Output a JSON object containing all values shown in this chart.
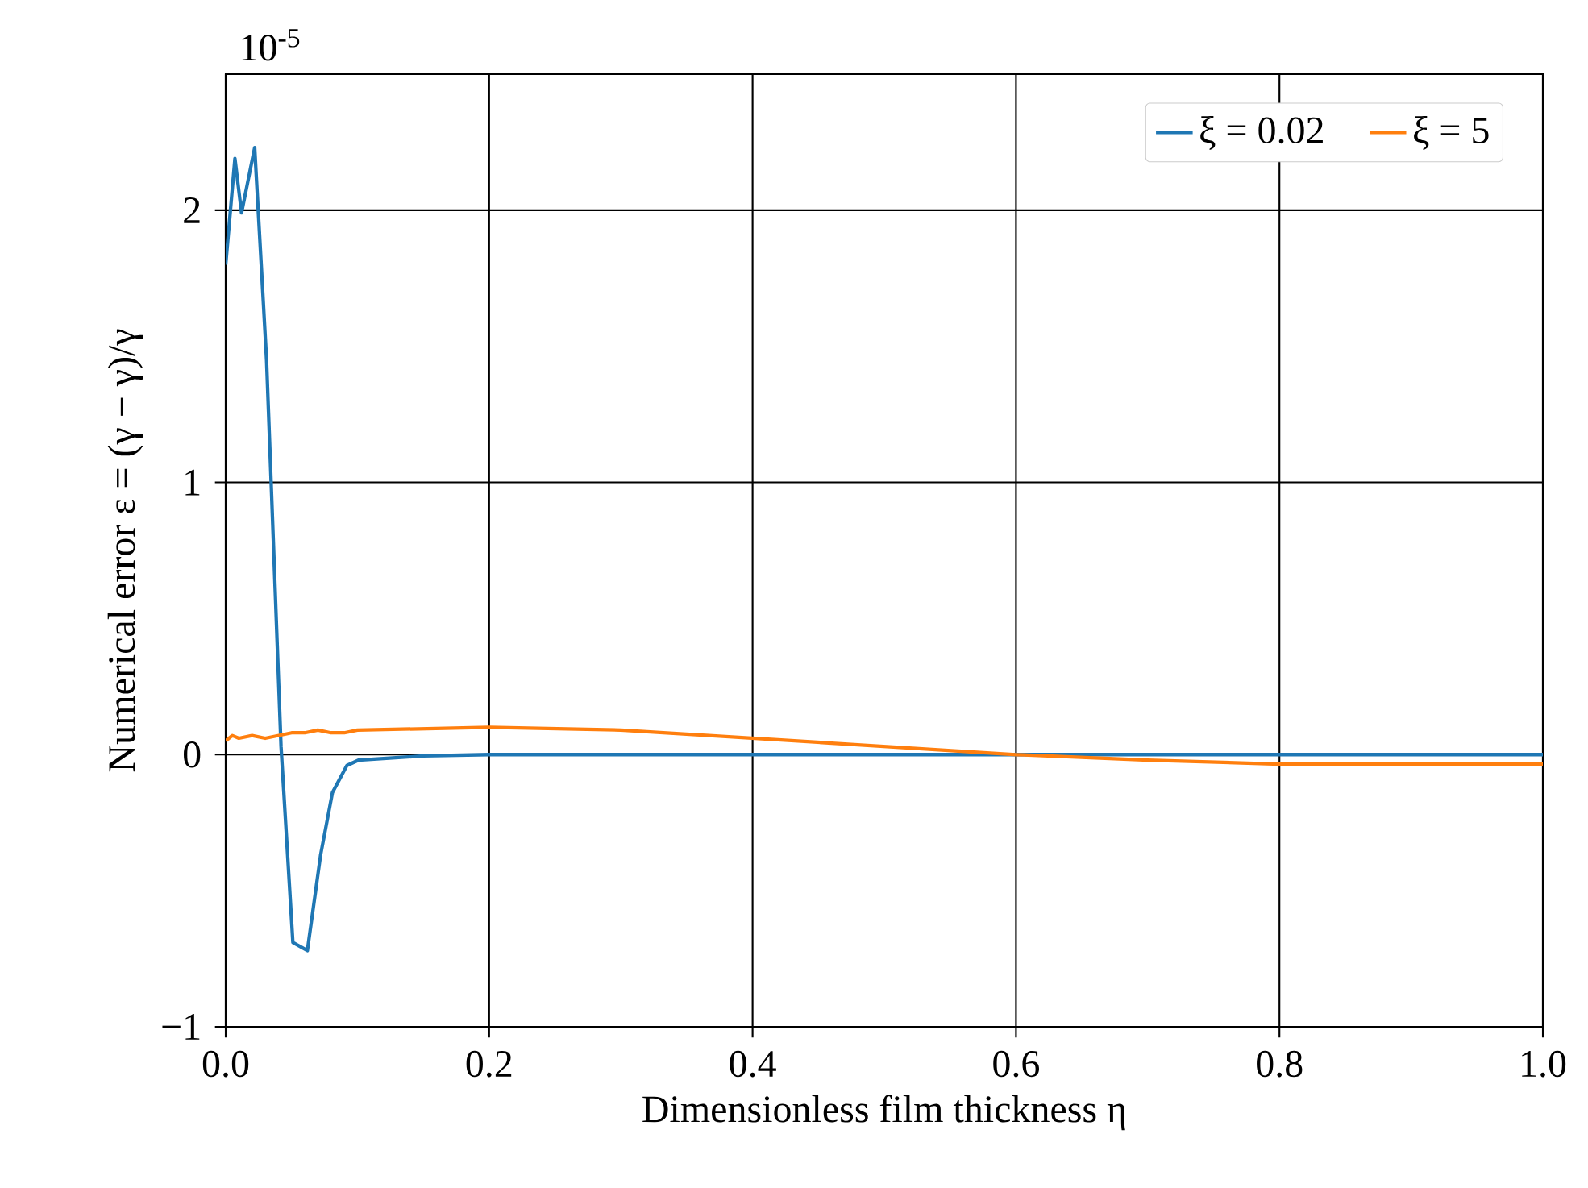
{
  "chart_data": {
    "type": "line",
    "xlabel": "Dimensionless film thickness η",
    "ylabel": "Numerical error ε = (γ − γ)/γ",
    "annotations": [
      "10$^{-5}$"
    ],
    "series": [
      {
        "name": "ξ = 0.02",
        "color": "#1f77b4",
        "x": [
          0,
          0.007,
          0.012,
          0.022,
          0.031,
          0.042,
          0.051,
          0.062,
          0.072,
          0.081,
          0.092,
          0.101,
          0.15,
          0.2,
          0.4,
          0.6,
          0.8,
          1.0
        ],
        "values": [
          1.8,
          2.19,
          1.99,
          2.23,
          1.45,
          0.03,
          -0.69,
          -0.72,
          -0.37,
          -0.14,
          -0.04,
          -0.02,
          -0.005,
          0,
          0,
          0,
          0,
          0
        ]
      },
      {
        "name": "ξ = 5",
        "color": "#ff7f0e",
        "x": [
          0,
          0.005,
          0.01,
          0.02,
          0.03,
          0.04,
          0.05,
          0.06,
          0.07,
          0.08,
          0.09,
          0.1,
          0.2,
          0.3,
          0.4,
          0.5,
          0.6,
          0.7,
          0.8,
          0.9,
          1.0
        ],
        "values": [
          0.05,
          0.07,
          0.06,
          0.07,
          0.06,
          0.07,
          0.08,
          0.08,
          0.09,
          0.08,
          0.08,
          0.09,
          0.1,
          0.09,
          0.06,
          0.03,
          0,
          -0.02,
          -0.035,
          -0.035,
          -0.035
        ]
      }
    ],
    "xlim": [
      0,
      1
    ],
    "ylim": [
      -1,
      2.5
    ],
    "xticks": [
      {
        "value": 0,
        "label": "0.0"
      },
      0.2,
      0.4,
      0.6,
      0.8,
      {
        "value": 1,
        "label": "1.0"
      }
    ],
    "yticks": [
      {
        "value": -1,
        "label": "−1"
      },
      0,
      1,
      2
    ],
    "grid": true,
    "legend": "top right",
    "line_style": "solid",
    "marker": "none"
  }
}
